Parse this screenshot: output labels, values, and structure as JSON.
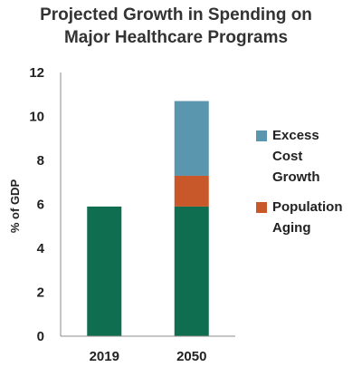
{
  "chart_data": {
    "type": "bar",
    "stacked": true,
    "title": [
      "Projected Growth in Spending on",
      "Major Healthcare Programs"
    ],
    "ylabel": "% of GDP",
    "xlabel": "",
    "ylim": [
      0,
      12
    ],
    "yticks": [
      0,
      2,
      4,
      6,
      8,
      10,
      12
    ],
    "categories": [
      "2019",
      "2050"
    ],
    "series": [
      {
        "name": "",
        "color": "#0f6e4f",
        "values": [
          5.9,
          5.9
        ]
      },
      {
        "name": "Population Aging",
        "color": "#c8582a",
        "values": [
          0,
          1.4
        ]
      },
      {
        "name": "Excess Cost Growth",
        "color": "#5b96af",
        "values": [
          0,
          3.4
        ]
      }
    ],
    "legend": {
      "placement": "right",
      "items": [
        {
          "label": "Excess Cost Growth",
          "color": "#5b96af"
        },
        {
          "label": "Population Aging",
          "color": "#c8582a"
        }
      ]
    },
    "grid": false
  }
}
